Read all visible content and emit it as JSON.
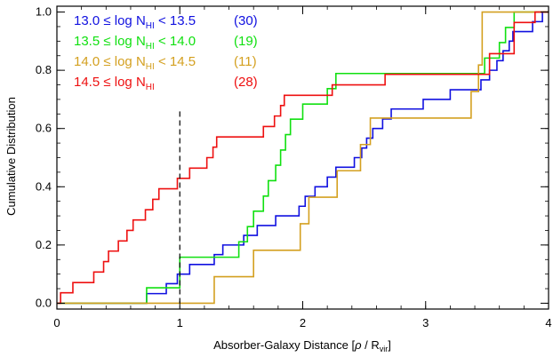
{
  "chart_data": {
    "type": "line",
    "xlabel_pre": "Absorber-Galaxy Distance [",
    "xlabel_rho": "ρ",
    "xlabel_mid": " / R",
    "xlabel_sub": "vir",
    "xlabel_post": "]",
    "ylabel": "Cumulative Distribution",
    "xlim": [
      0,
      4
    ],
    "ylim": [
      -0.02,
      1.02
    ],
    "xticks": [
      "0",
      "1",
      "2",
      "3",
      "4"
    ],
    "yticks": [
      "0.0",
      "0.2",
      "0.4",
      "0.6",
      "0.8",
      "1.0"
    ],
    "grid": false,
    "legend_position": "top-left",
    "reference_line": {
      "x": 1.0,
      "y0": 0.0,
      "y1": 0.66,
      "style": "dashed",
      "color": "#000000"
    },
    "series": [
      {
        "legend_pre": "13.0 ≤ log N",
        "legend_sub": "HI",
        "legend_post": " < 13.5",
        "count": "(30)",
        "color": "#1010e0",
        "x": [
          0.73,
          0.89,
          0.98,
          1.08,
          1.28,
          1.35,
          1.52,
          1.63,
          1.78,
          1.97,
          2.02,
          2.1,
          2.2,
          2.27,
          2.42,
          2.48,
          2.52,
          2.57,
          2.65,
          2.72,
          2.98,
          3.2,
          3.45,
          3.52,
          3.58,
          3.63,
          3.68,
          3.71,
          3.87,
          3.95
        ],
        "y": [
          0.033,
          0.067,
          0.1,
          0.133,
          0.167,
          0.2,
          0.233,
          0.267,
          0.3,
          0.333,
          0.367,
          0.4,
          0.433,
          0.467,
          0.5,
          0.533,
          0.567,
          0.6,
          0.633,
          0.667,
          0.7,
          0.733,
          0.767,
          0.8,
          0.833,
          0.867,
          0.9,
          0.933,
          0.967,
          1.0
        ]
      },
      {
        "legend_pre": "13.5 ≤ log N",
        "legend_sub": "HI",
        "legend_post": " < 14.0",
        "count": "(19)",
        "color": "#10e010",
        "x": [
          0.73,
          1.0,
          1.48,
          1.55,
          1.6,
          1.68,
          1.72,
          1.78,
          1.82,
          1.86,
          1.9,
          2.0,
          2.2,
          2.27,
          3.48,
          3.6,
          3.65,
          3.72,
          3.82
        ],
        "y": [
          0.053,
          0.158,
          0.211,
          0.263,
          0.316,
          0.368,
          0.421,
          0.474,
          0.526,
          0.579,
          0.632,
          0.684,
          0.737,
          0.789,
          0.842,
          0.895,
          0.947,
          1.0,
          1.0
        ]
      },
      {
        "legend_pre": "14.0 ≤ log N",
        "legend_sub": "HI",
        "legend_post": " < 14.5",
        "count": "(11)",
        "color": "#d4a020",
        "x": [
          1.28,
          1.6,
          1.98,
          2.05,
          2.28,
          2.47,
          2.55,
          3.37,
          3.43,
          3.46,
          3.82
        ],
        "y": [
          0.091,
          0.182,
          0.273,
          0.364,
          0.455,
          0.545,
          0.636,
          0.727,
          0.818,
          1.0,
          1.0
        ]
      },
      {
        "legend_pre": "14.5 ≤ log N",
        "legend_sub": "HI",
        "legend_post": "",
        "count": "(28)",
        "color": "#ee1010",
        "x": [
          0.03,
          0.13,
          0.3,
          0.38,
          0.42,
          0.5,
          0.57,
          0.62,
          0.72,
          0.78,
          0.83,
          0.93,
          0.98,
          1.08,
          1.22,
          1.27,
          1.3,
          1.42,
          1.68,
          1.77,
          1.82,
          1.85,
          2.02,
          2.24,
          2.67,
          3.52,
          3.72,
          3.89
        ],
        "y": [
          0.036,
          0.071,
          0.107,
          0.143,
          0.179,
          0.214,
          0.25,
          0.286,
          0.321,
          0.357,
          0.393,
          0.393,
          0.429,
          0.464,
          0.5,
          0.536,
          0.571,
          0.571,
          0.607,
          0.643,
          0.679,
          0.714,
          0.714,
          0.75,
          0.786,
          0.857,
          0.964,
          1.0
        ]
      }
    ]
  }
}
